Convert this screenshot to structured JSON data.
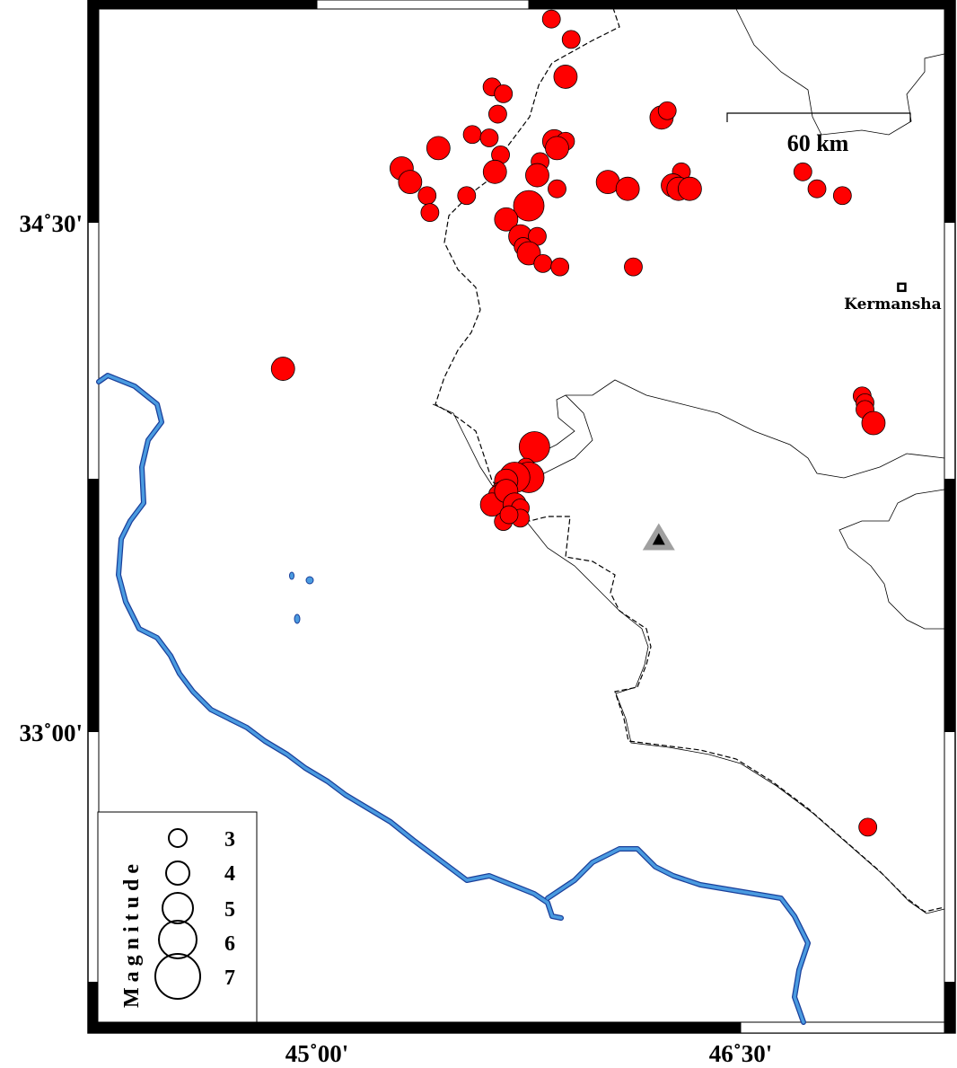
{
  "map": {
    "lon_range": [
      44.2,
      47.2
    ],
    "lat_range": [
      32.0,
      35.15
    ],
    "x_ticks": [
      {
        "lon": 45.0,
        "label": "45˚00'"
      },
      {
        "lon": 46.5,
        "label": "46˚30'"
      }
    ],
    "y_ticks": [
      {
        "lat": 34.5,
        "label": "34˚30'"
      },
      {
        "lat": 33.0,
        "label": "33˚00'"
      }
    ],
    "scale_bar": {
      "label": "60 km"
    },
    "city": {
      "name": "Kermansha",
      "lon": 47.07,
      "lat": 34.31
    },
    "station": {
      "lon": 46.21,
      "lat": 33.57,
      "icon": "triangle-icon"
    },
    "colors": {
      "event": "#ff0000",
      "river": "#4a9be0",
      "river_edge": "#1a3f9a",
      "station_outer": "#a0a0a0"
    },
    "legend": {
      "title": "Magnitude",
      "items": [
        {
          "mag": 3,
          "label": "3"
        },
        {
          "mag": 4,
          "label": "4"
        },
        {
          "mag": 5,
          "label": "5"
        },
        {
          "mag": 6,
          "label": "6"
        },
        {
          "mag": 7,
          "label": "7"
        }
      ]
    },
    "events": [
      [
        45.83,
        35.1,
        3
      ],
      [
        45.9,
        35.04,
        3
      ],
      [
        45.88,
        34.93,
        4
      ],
      [
        45.62,
        34.9,
        3
      ],
      [
        45.66,
        34.88,
        3
      ],
      [
        46.22,
        34.81,
        4
      ],
      [
        46.24,
        34.83,
        3
      ],
      [
        45.64,
        34.82,
        3
      ],
      [
        45.55,
        34.76,
        3
      ],
      [
        45.61,
        34.75,
        3
      ],
      [
        45.43,
        34.72,
        4
      ],
      [
        45.84,
        34.74,
        4
      ],
      [
        45.88,
        34.74,
        3
      ],
      [
        45.85,
        34.72,
        4
      ],
      [
        45.79,
        34.68,
        3
      ],
      [
        45.65,
        34.7,
        3
      ],
      [
        45.3,
        34.66,
        4
      ],
      [
        45.33,
        34.62,
        4
      ],
      [
        45.63,
        34.65,
        4
      ],
      [
        45.78,
        34.64,
        4
      ],
      [
        45.85,
        34.6,
        3
      ],
      [
        46.03,
        34.62,
        4
      ],
      [
        46.1,
        34.6,
        4
      ],
      [
        46.29,
        34.65,
        3
      ],
      [
        46.26,
        34.61,
        4
      ],
      [
        46.28,
        34.6,
        4
      ],
      [
        46.32,
        34.6,
        4
      ],
      [
        46.72,
        34.65,
        3
      ],
      [
        46.77,
        34.6,
        3
      ],
      [
        46.86,
        34.58,
        3
      ],
      [
        45.39,
        34.58,
        3
      ],
      [
        45.53,
        34.58,
        3
      ],
      [
        45.4,
        34.53,
        3
      ],
      [
        45.75,
        34.55,
        5
      ],
      [
        45.67,
        34.51,
        4
      ],
      [
        45.72,
        34.46,
        4
      ],
      [
        45.78,
        34.46,
        3
      ],
      [
        45.73,
        34.43,
        3
      ],
      [
        45.75,
        34.41,
        4
      ],
      [
        45.8,
        34.38,
        3
      ],
      [
        45.86,
        34.37,
        3
      ],
      [
        46.12,
        34.37,
        3
      ],
      [
        44.88,
        34.07,
        4
      ],
      [
        46.93,
        33.99,
        3
      ],
      [
        46.94,
        33.97,
        3
      ],
      [
        46.94,
        33.95,
        3
      ],
      [
        46.97,
        33.91,
        4
      ],
      [
        45.77,
        33.84,
        5
      ],
      [
        45.74,
        33.78,
        3
      ],
      [
        45.75,
        33.75,
        5
      ],
      [
        45.7,
        33.75,
        5
      ],
      [
        45.67,
        33.74,
        4
      ],
      [
        45.65,
        33.71,
        3
      ],
      [
        45.64,
        33.7,
        3
      ],
      [
        45.62,
        33.67,
        4
      ],
      [
        45.67,
        33.71,
        4
      ],
      [
        45.7,
        33.67,
        4
      ],
      [
        45.72,
        33.66,
        3
      ],
      [
        45.72,
        33.63,
        3
      ],
      [
        45.66,
        33.62,
        3
      ],
      [
        45.68,
        33.64,
        3
      ],
      [
        46.95,
        32.72,
        3
      ]
    ]
  }
}
